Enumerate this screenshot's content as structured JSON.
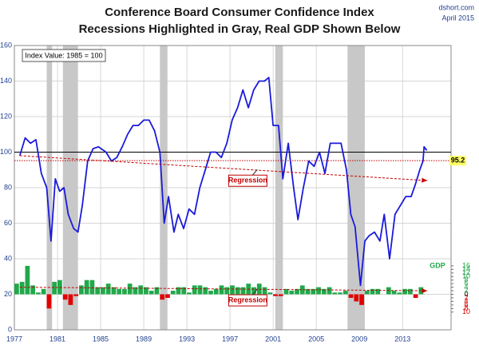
{
  "chart_data": {
    "type": "line",
    "title": "Conference Board Consumer Confidence Index",
    "subtitle": "Recessions Highlighted in Gray, Real GDP Shown Below",
    "source": "dshort.com",
    "date": "April 2015",
    "annotation": "Index Value: 1985 = 100",
    "xlim": [
      1977,
      2017.5
    ],
    "xticks": [
      1977,
      1981,
      1985,
      1989,
      1993,
      1997,
      2001,
      2005,
      2009,
      2013
    ],
    "ylim": [
      0,
      160
    ],
    "yticks": [
      0,
      20,
      40,
      60,
      80,
      100,
      120,
      140,
      160
    ],
    "y2lim": [
      -20,
      140
    ],
    "y2ticks": [
      {
        "value": -10,
        "label": "10"
      },
      {
        "value": -8,
        "label": "8"
      },
      {
        "value": -6,
        "label": "6"
      },
      {
        "value": -4,
        "label": "4"
      },
      {
        "value": -2,
        "label": "2"
      },
      0,
      2,
      4,
      6,
      8,
      10,
      12,
      14,
      16
    ],
    "grid": true,
    "recessions": [
      [
        1980.0,
        1980.5
      ],
      [
        1981.5,
        1982.9
      ],
      [
        1990.5,
        1991.2
      ],
      [
        2001.2,
        2001.9
      ],
      [
        2007.9,
        2009.5
      ]
    ],
    "recession_color": "#c8c8c8",
    "reference_lines": [
      {
        "value": 100,
        "color": "#000000",
        "style": "solid"
      },
      {
        "value": 95.2,
        "color": "#c00000",
        "style": "dotted"
      }
    ],
    "series": [
      {
        "name": "Consumer Confidence",
        "color": "#1a1adb",
        "x": [
          1977.5,
          1978,
          1978.5,
          1979,
          1979.5,
          1980,
          1980.4,
          1980.8,
          1981.2,
          1981.6,
          1982,
          1982.5,
          1982.9,
          1983.3,
          1983.8,
          1984.3,
          1984.8,
          1985.5,
          1986,
          1986.5,
          1987,
          1987.5,
          1988,
          1988.5,
          1989,
          1989.5,
          1990,
          1990.5,
          1990.9,
          1991.3,
          1991.8,
          1992.2,
          1992.7,
          1993.2,
          1993.7,
          1994.2,
          1994.7,
          1995.2,
          1995.7,
          1996.2,
          1996.7,
          1997.2,
          1997.7,
          1998.2,
          1998.7,
          1999.2,
          1999.7,
          2000.2,
          2000.6,
          2001,
          2001.5,
          2001.9,
          2002.4,
          2002.9,
          2003.3,
          2003.8,
          2004.3,
          2004.8,
          2005.3,
          2005.8,
          2006.3,
          2006.8,
          2007.3,
          2007.8,
          2008.2,
          2008.6,
          2009.1,
          2009.5,
          2009.9,
          2010.4,
          2010.9,
          2011.3,
          2011.8,
          2012.3,
          2012.8,
          2013.3,
          2013.8,
          2014.2,
          2014.6,
          2014.9,
          2015,
          2015.25
        ],
        "values": [
          98,
          108,
          105,
          107,
          88,
          80,
          50,
          85,
          78,
          80,
          65,
          57,
          55,
          70,
          95,
          102,
          103,
          100,
          95,
          97,
          103,
          110,
          115,
          115,
          118,
          118,
          112,
          100,
          60,
          75,
          55,
          65,
          57,
          68,
          65,
          80,
          90,
          100,
          100,
          97,
          105,
          118,
          125,
          135,
          125,
          135,
          140,
          140,
          142,
          115,
          115,
          85,
          105,
          80,
          62,
          80,
          95,
          92,
          100,
          88,
          105,
          105,
          105,
          90,
          65,
          58,
          25,
          50,
          53,
          55,
          50,
          65,
          40,
          65,
          70,
          75,
          75,
          82,
          90,
          95,
          103,
          101
        ]
      },
      {
        "name": "Regression",
        "color": "#c00000",
        "x": [
          1977.5,
          2015.3
        ],
        "values": [
          98,
          84
        ]
      },
      {
        "name": "GDP",
        "type": "bar",
        "axis": "y2",
        "color": "#21a84a",
        "negative_color": "#e00000",
        "x": [
          1977,
          1977.5,
          1978,
          1978.5,
          1979,
          1979.5,
          1980,
          1980.5,
          1981,
          1981.5,
          1982,
          1982.5,
          1983,
          1983.5,
          1984,
          1984.5,
          1985,
          1985.5,
          1986,
          1986.5,
          1987,
          1987.5,
          1988,
          1988.5,
          1989,
          1989.5,
          1990,
          1990.5,
          1991,
          1991.5,
          1992,
          1992.5,
          1993,
          1993.5,
          1994,
          1994.5,
          1995,
          1995.5,
          1996,
          1996.5,
          1997,
          1997.5,
          1998,
          1998.5,
          1999,
          1999.5,
          2000,
          2000.5,
          2001,
          2001.5,
          2002,
          2002.5,
          2003,
          2003.5,
          2004,
          2004.5,
          2005,
          2005.5,
          2006,
          2006.5,
          2007,
          2007.5,
          2008,
          2008.5,
          2009,
          2009.5,
          2010,
          2010.5,
          2011,
          2011.5,
          2012,
          2012.5,
          2013,
          2013.5,
          2014,
          2014.5
        ],
        "values": [
          6,
          7,
          16,
          5,
          1,
          3,
          -8,
          7,
          8,
          -3,
          -6,
          -1,
          5,
          8,
          8,
          4,
          4,
          6,
          4,
          3,
          3,
          6,
          4,
          5,
          4,
          2,
          4,
          -3,
          -2,
          2,
          4,
          4,
          1,
          5,
          5,
          4,
          2,
          3,
          5,
          4,
          5,
          4,
          4,
          6,
          4,
          6,
          4,
          1,
          -1,
          -1,
          3,
          2,
          3,
          5,
          3,
          3,
          4,
          3,
          4,
          1,
          1,
          2,
          -2,
          -4,
          -6,
          2,
          3,
          3,
          0,
          4,
          2,
          1,
          3,
          3,
          -2,
          4
        ]
      },
      {
        "name": "Regression",
        "axis": "y2",
        "color": "#c00000",
        "x": [
          1977.5,
          2015.3
        ],
        "values": [
          4,
          2
        ]
      }
    ]
  }
}
